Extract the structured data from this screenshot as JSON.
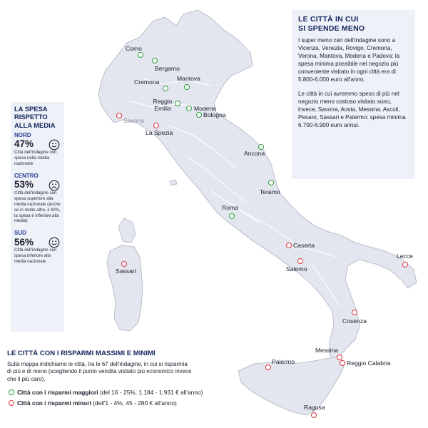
{
  "info_box": {
    "title_line1": "LE CITTÀ IN CUI",
    "title_line2": "SI SPENDE MENO",
    "para1": "I super meno cari dell'indagine sono a Vicenza, Venezia, Rovigo, Cremona, Verona, Mantova, Modena e Padova: la spesa minima possibile nel negozio più conveniente visitato in ogni città era di 5.800-6.000 euro all'anno.",
    "para2": "Le città in cui avremmo speso di più nel negozio meno costoso visitato sono, invece, Savona, Aosta, Messina, Ascoli, Pesaro, Sassari e Palermo: spesa minima 6.700-6.900 euro annui."
  },
  "spend_box": {
    "title": "LA SPESA RISPETTO ALLA MEDIA",
    "zones": [
      {
        "name": "NORD",
        "pct": "47%",
        "desc": "Città dell'indagine con spesa nella media nazionale",
        "face": "smile-face-icon"
      },
      {
        "name": "CENTRO",
        "pct": "53%",
        "desc": "Città dell'indagine con spesa superiore alla media nazionale (anche se in molte altre, il 40%, la spesa è inferiore alla media)",
        "face": "frown-face-icon"
      },
      {
        "name": "SUD",
        "pct": "56%",
        "desc": "Città dell'indagine con spesa inferiore alla media nazionale",
        "face": "smile-face-icon"
      }
    ]
  },
  "legend": {
    "title": "LE CITTÀ CON I RISPARMI MASSIMI E MINIMI",
    "description": "Sulla mappa indichiamo le città, tra le 67 dell'indagine, in cui si risparmia di più e di meno (scegliendo il punto vendita visitato più economico invece che il più caro).",
    "max_label": "Città con i risparmi maggiori",
    "max_detail": "(del 16 - 25%, 1.184 - 1.931 € all'anno)",
    "min_label": "Città con i risparmi minori",
    "min_detail": "(dell'1 - 4%, 45 - 280 € all'anno)"
  },
  "colors": {
    "max_savings": "#2a9d3a",
    "min_savings": "#d9323c",
    "title_blue": "#14245c",
    "land": "#e3e6ee",
    "box_bg": "#eef1f8"
  },
  "cities": [
    {
      "name": "Como",
      "type": "max"
    },
    {
      "name": "Bergamo",
      "type": "max"
    },
    {
      "name": "Cremona",
      "type": "max"
    },
    {
      "name": "Mantova",
      "type": "max"
    },
    {
      "name": "Reggio Emilia",
      "type": "max"
    },
    {
      "name": "Modena",
      "type": "max"
    },
    {
      "name": "Bologna",
      "type": "max"
    },
    {
      "name": "Ancona",
      "type": "max"
    },
    {
      "name": "Teramo",
      "type": "max"
    },
    {
      "name": "Roma",
      "type": "max"
    },
    {
      "name": "Savona",
      "type": "min"
    },
    {
      "name": "La Spezia",
      "type": "min"
    },
    {
      "name": "Sassari",
      "type": "min"
    },
    {
      "name": "Caserta",
      "type": "min"
    },
    {
      "name": "Salerno",
      "type": "min"
    },
    {
      "name": "Lecce",
      "type": "min"
    },
    {
      "name": "Cosenza",
      "type": "min"
    },
    {
      "name": "Messina",
      "type": "min"
    },
    {
      "name": "Reggio Calabria",
      "type": "min"
    },
    {
      "name": "Palermo",
      "type": "min"
    },
    {
      "name": "Ragusa",
      "type": "min"
    }
  ]
}
